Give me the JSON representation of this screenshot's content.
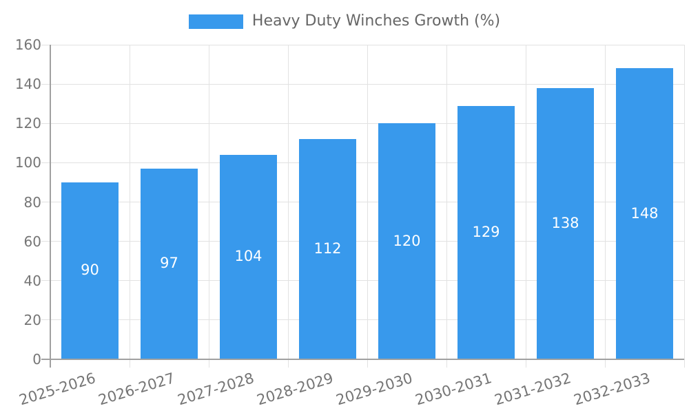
{
  "legend": {
    "label": "Heavy Duty Winches Growth (%)"
  },
  "colors": {
    "bar": "#3899ec",
    "grid": "#e2e2e2",
    "axis": "#a0a0a0",
    "tick_text": "#757575",
    "legend_text": "#666666",
    "bar_label_text": "#ffffff",
    "background": "#ffffff"
  },
  "chart_data": {
    "type": "bar",
    "title": "",
    "legend_label": "Heavy Duty Winches Growth (%)",
    "legend_position": "top",
    "categories": [
      "2025-2026",
      "2026-2027",
      "2027-2028",
      "2028-2029",
      "2029-2030",
      "2030-2031",
      "2031-2032",
      "2032-2033"
    ],
    "series": [
      {
        "name": "Heavy Duty Winches Growth (%)",
        "values": [
          90,
          97,
          104,
          112,
          120,
          129,
          138,
          148
        ]
      }
    ],
    "values": [
      90,
      97,
      104,
      112,
      120,
      129,
      138,
      148
    ],
    "bar_value_labels": [
      "90",
      "97",
      "104",
      "112",
      "120",
      "129",
      "138",
      "148"
    ],
    "xlabel": "",
    "ylabel": "",
    "ylim": [
      0,
      160
    ],
    "ytick_step": 20,
    "yticks": [
      0,
      20,
      40,
      60,
      80,
      100,
      120,
      140,
      160
    ],
    "grid": true,
    "x_label_rotation_deg": -17
  }
}
